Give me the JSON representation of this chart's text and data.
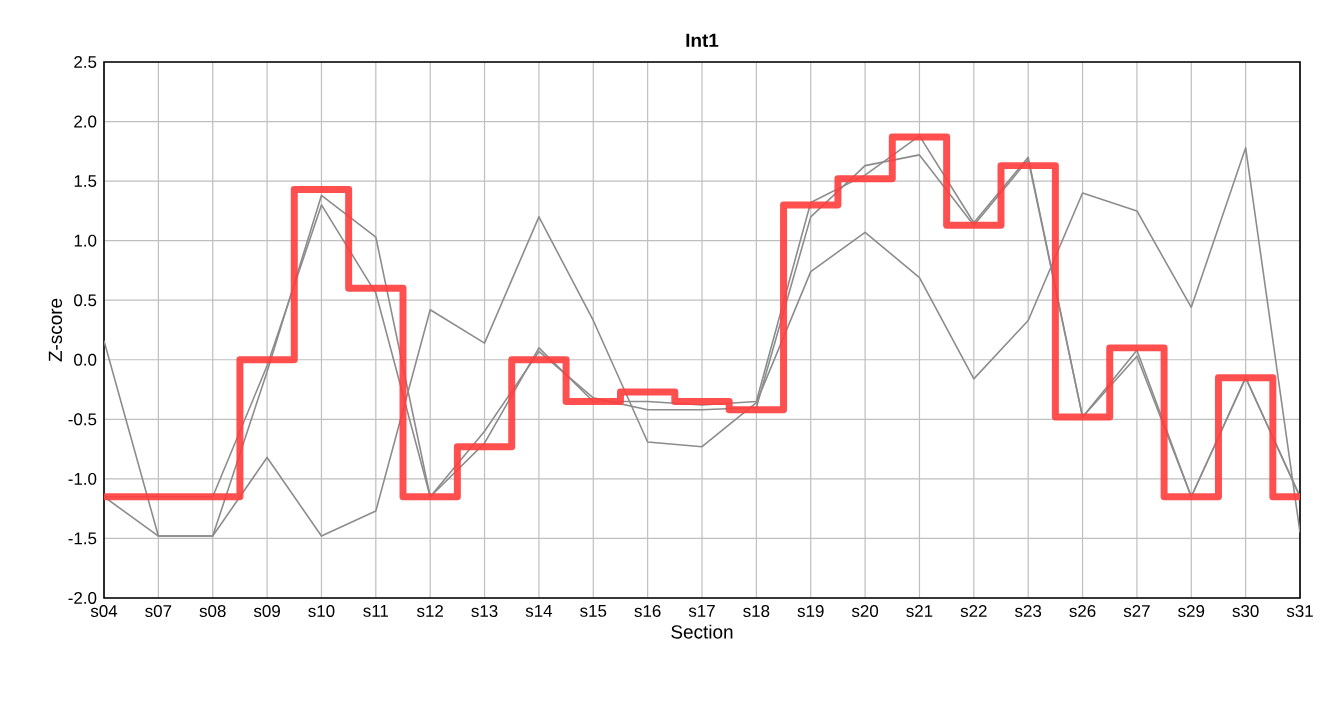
{
  "chart_data": {
    "type": "line",
    "title": "**Int1**",
    "xlabel": "Section",
    "ylabel": "Z-score",
    "categories": [
      "s04",
      "s07",
      "s08",
      "s09",
      "s10",
      "s11",
      "s12",
      "s13",
      "s14",
      "s15",
      "s16",
      "s17",
      "s18",
      "s19",
      "s20",
      "s21",
      "s22",
      "s23",
      "s26",
      "s27",
      "s29",
      "s30",
      "s31"
    ],
    "ylim": [
      -2.0,
      2.5
    ],
    "yticks": [
      {
        "value": -2,
        "label": "-2.0"
      },
      -1.5,
      {
        "value": -1,
        "label": "-1.0"
      },
      -0.5,
      {
        "value": 0,
        "label": "0.0"
      },
      0.5,
      {
        "value": 1,
        "label": "1.0"
      },
      1.5,
      {
        "value": 2,
        "label": "2.0"
      },
      2.5
    ],
    "grid": true,
    "marker": "none",
    "line_style": "solid",
    "series": [
      {
        "color": "#8c8c8c",
        "values": [
          0.16,
          -1.48,
          -1.48,
          -0.82,
          -1.48,
          -1.27,
          0.42,
          0.14,
          1.2,
          0.33,
          -0.69,
          -0.73,
          -0.36,
          0.74,
          1.07,
          0.69,
          -0.16,
          0.33,
          1.4,
          1.25,
          0.44,
          1.78,
          -1.45
        ]
      },
      {
        "color": "#8c8c8c",
        "values": [
          -1.15,
          -1.15,
          -1.15,
          -0.05,
          1.3,
          0.56,
          -1.15,
          -0.6,
          0.07,
          -0.32,
          -0.42,
          -0.42,
          -0.4,
          1.2,
          1.63,
          1.72,
          1.13,
          1.68,
          -0.48,
          0.03,
          -1.15,
          -0.15,
          -1.15
        ]
      },
      {
        "color": "#8c8c8c",
        "values": [
          -1.15,
          -1.48,
          -1.48,
          -0.1,
          1.38,
          1.03,
          -1.15,
          -0.7,
          0.1,
          -0.35,
          -0.35,
          -0.38,
          -0.35,
          1.32,
          1.55,
          1.88,
          1.15,
          1.7,
          -0.48,
          0.08,
          -1.15,
          -0.15,
          -1.15
        ]
      },
      {
        "type": "step",
        "color": "#ff3c3c",
        "values": [
          -1.15,
          -1.15,
          -1.15,
          0.0,
          1.43,
          0.6,
          -1.15,
          -0.73,
          0.0,
          -0.35,
          -0.27,
          -0.35,
          -0.42,
          1.3,
          1.52,
          1.87,
          1.13,
          1.63,
          -0.48,
          0.1,
          -1.15,
          -0.15,
          -1.15
        ]
      }
    ]
  }
}
